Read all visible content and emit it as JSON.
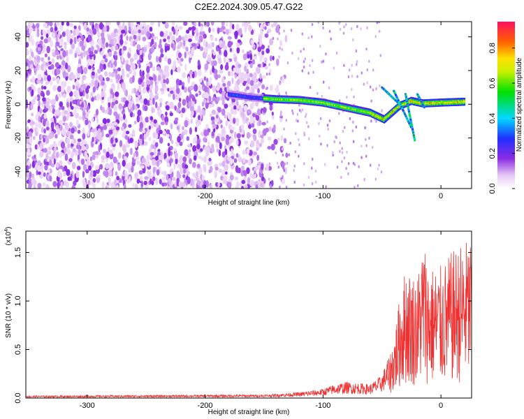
{
  "title": "C2E2.2024.309.05.47.G22",
  "chart_data": [
    {
      "type": "heatmap",
      "xlabel": "Height of straight line (km)",
      "ylabel": "Frequency (Hz)",
      "xlim": [
        -352,
        26
      ],
      "ylim": [
        -50,
        49
      ],
      "x_ticks": [
        -300,
        -200,
        -100,
        0
      ],
      "y_ticks": [
        -40,
        -20,
        0,
        20,
        40
      ],
      "colorbar": {
        "label": "Normalized spectral amplitude",
        "range": [
          0,
          0.95
        ],
        "ticks": [
          0.0,
          0.2,
          0.4,
          0.6,
          0.8
        ]
      },
      "ridge": {
        "x": [
          -180,
          -160,
          -140,
          -120,
          -100,
          -80,
          -60,
          -48,
          -35,
          -25,
          -15,
          0,
          20
        ],
        "y": [
          6,
          4,
          3,
          2.5,
          1,
          -2,
          -5,
          -9,
          -1,
          2,
          0.5,
          1,
          1.5
        ]
      }
    },
    {
      "type": "line",
      "xlabel": "Height of straight line (km)",
      "ylabel": "SNR (10 * v/v)",
      "y_multiplier": "(x10",
      "y_multiplier_exp": "4",
      "xlim": [
        -352,
        26
      ],
      "ylim": [
        0,
        1.72
      ],
      "x_ticks": [
        -300,
        -200,
        -100,
        0
      ],
      "y_ticks": [
        0.0,
        0.5,
        1.0,
        1.5
      ],
      "color": "#f03030",
      "envelope": {
        "x": [
          -352,
          -150,
          -120,
          -100,
          -90,
          -80,
          -60,
          -50,
          -45,
          -40,
          -35,
          -30,
          -20,
          -15,
          -10,
          0,
          10,
          20,
          26
        ],
        "y": [
          0.02,
          0.03,
          0.05,
          0.08,
          0.12,
          0.14,
          0.12,
          0.2,
          0.35,
          0.6,
          1.0,
          1.3,
          1.2,
          1.6,
          1.3,
          1.3,
          1.45,
          1.55,
          1.6
        ]
      }
    }
  ]
}
